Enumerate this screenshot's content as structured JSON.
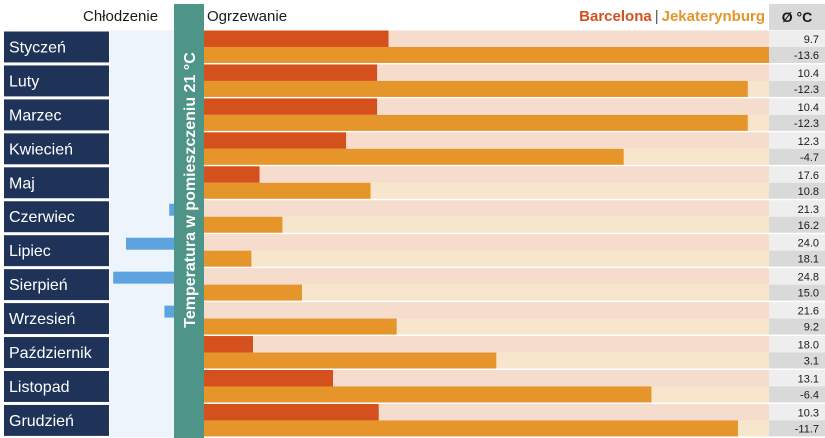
{
  "header": {
    "cooling_label": "Chłodzenie",
    "heating_label": "Ogrzewanie",
    "legend_city1": "Barcelona",
    "legend_separator": "|",
    "legend_city2": "Jekaterynburg",
    "avg_label": "Ø °C"
  },
  "chart_data": {
    "type": "bar",
    "title": "",
    "threshold_label": "Temperatura w pomieszczeniu 21 °C",
    "threshold": 21,
    "categories": [
      "Styczeń",
      "Luty",
      "Marzec",
      "Kwiecień",
      "Maj",
      "Czerwiec",
      "Lipiec",
      "Sierpień",
      "Wrzesień",
      "Październik",
      "Listopad",
      "Grudzień"
    ],
    "series": [
      {
        "name": "Barcelona",
        "values": [
          9.7,
          10.4,
          10.4,
          12.3,
          17.6,
          21.3,
          24.0,
          24.8,
          21.6,
          18.0,
          13.1,
          10.3
        ]
      },
      {
        "name": "Jekaterynburg",
        "values": [
          -13.6,
          -12.3,
          -12.3,
          -4.7,
          10.8,
          16.2,
          18.1,
          15.0,
          9.2,
          3.1,
          -6.4,
          -11.7
        ]
      }
    ],
    "value_labels": {
      "Barcelona": [
        "9.7",
        "10.4",
        "10.4",
        "12.3",
        "17.6",
        "21.3",
        "24.0",
        "24.8",
        "21.6",
        "18.0",
        "13.1",
        "10.3"
      ],
      "Jekaterynburg": [
        "-13.6",
        "-12.3",
        "-12.3",
        "-4.7",
        "10.8",
        "16.2",
        "18.1",
        "15.0",
        "9.2",
        "3.1",
        "-6.4",
        "-11.7"
      ]
    },
    "colors": {
      "Barcelona": "#d4511e",
      "Jekaterynburg": "#e5952a",
      "Barcelona_track": "#f5dccc",
      "Jekaterynburg_track": "#f7e5cc",
      "cooling": "#5ca3e0",
      "cooling_track": "#eef4fb",
      "threshold_band": "#4e9488",
      "month_box": "#1f3358",
      "avg_col": "#eeeeee",
      "avg_col_alt": "#d9d9d9"
    }
  }
}
